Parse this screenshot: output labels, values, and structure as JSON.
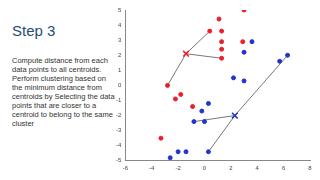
{
  "chart_data": {
    "type": "scatter",
    "title": "Step 3",
    "annotations": [
      "Compute distance from each data points to all centroids.",
      "Perform clustering based on the minimum distance from centroids by Selecting the data points that are closer to a centroid to belong to the same cluster"
    ],
    "xlim": [
      -6,
      8
    ],
    "xticks": [
      -6,
      -4,
      -2,
      0,
      2,
      4,
      6,
      8
    ],
    "ylim": [
      -5,
      5
    ],
    "yticks": [
      -5,
      -4,
      -3,
      -2,
      -1,
      0,
      1,
      2,
      3,
      4,
      5
    ],
    "grid": false,
    "series": [
      {
        "type": "line",
        "color": "#555555",
        "marker": "none",
        "line_style": "solid",
        "x": [
          -1.4,
          0.4,
          null,
          -1.4,
          1.3,
          null,
          -1.4,
          -2.8,
          null,
          2.3,
          6.3,
          null,
          2.3,
          -0.8,
          null,
          2.3,
          0.3
        ],
        "y": [
          2.1,
          3.6,
          null,
          2.1,
          1.8,
          null,
          2.1,
          0,
          null,
          -2,
          2,
          null,
          -2,
          -2.4,
          null,
          -2,
          -4.4
        ]
      },
      {
        "type": "scatter",
        "color": "#e8202a",
        "marker": "circle",
        "x": [
          3,
          1.1,
          1.3,
          0.4,
          1.3,
          1.3,
          1.3,
          2.9,
          -2.8,
          -2.2,
          -1.8,
          -0.9,
          -3.3
        ],
        "y": [
          5,
          4.4,
          3.6,
          3.6,
          2.9,
          2.4,
          1.8,
          2.9,
          0,
          -0.9,
          -0.6,
          -1.4,
          -3.5
        ]
      },
      {
        "type": "scatter",
        "color": "#2233cc",
        "marker": "circle",
        "x": [
          3.6,
          3,
          2.2,
          3,
          6.3,
          5.7,
          0.3,
          -0.2,
          -0.8,
          0,
          -2,
          -1.4,
          -2.6,
          0.3
        ],
        "y": [
          2.9,
          2.2,
          0.5,
          0.3,
          2,
          1.6,
          -1.2,
          -1.7,
          -2.4,
          -2.4,
          -4.4,
          -4.4,
          -4.8,
          -4.4
        ]
      },
      {
        "type": "scatter",
        "color": "#e8202a",
        "marker": "x",
        "x": [
          -1.4
        ],
        "y": [
          2.1
        ]
      },
      {
        "type": "scatter",
        "color": "#2233cc",
        "marker": "x",
        "x": [
          2.3
        ],
        "y": [
          -2
        ]
      }
    ]
  }
}
